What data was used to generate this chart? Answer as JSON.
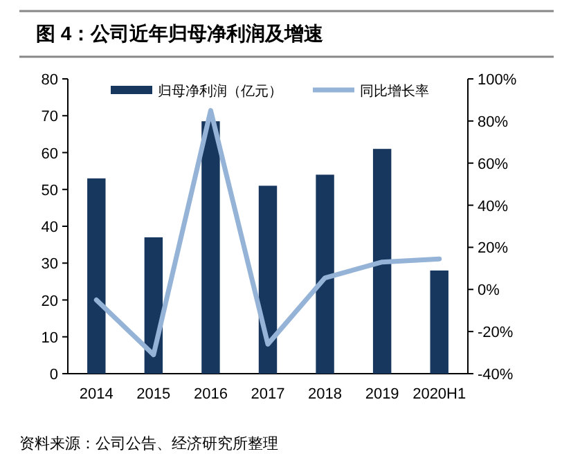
{
  "chart_data": {
    "type": "bar",
    "title": "图 4：公司近年归母净利润及增速",
    "categories": [
      "2014",
      "2015",
      "2016",
      "2017",
      "2018",
      "2019",
      "2020H1"
    ],
    "series": [
      {
        "name": "归母净利润（亿元）",
        "color": "#17375e",
        "values": [
          53,
          37,
          68.5,
          51,
          54,
          61,
          28
        ]
      },
      {
        "name": "同比增长率",
        "type": "line",
        "axis": "y2",
        "color": "#95b3d7",
        "values": [
          -5,
          -31,
          85,
          -26,
          5.5,
          13,
          14.5
        ]
      }
    ],
    "ylim": [
      0,
      80
    ],
    "yticks": [
      0,
      10,
      20,
      30,
      40,
      50,
      60,
      70,
      80
    ],
    "y2lim": [
      -40,
      100
    ],
    "y2ticks": [
      {
        "value": -40,
        "label": "-40%"
      },
      {
        "value": -20,
        "label": "-20%"
      },
      {
        "value": 0,
        "label": "0%"
      },
      {
        "value": 20,
        "label": "20%"
      },
      {
        "value": 40,
        "label": "40%"
      },
      {
        "value": 60,
        "label": "60%"
      },
      {
        "value": 80,
        "label": "80%"
      },
      {
        "value": 100,
        "label": "100%"
      }
    ],
    "grid": false,
    "legend": "top",
    "marker": "none",
    "line_style": "solid",
    "annotations": [
      "资料来源：公司公告、经济研究所整理"
    ]
  }
}
